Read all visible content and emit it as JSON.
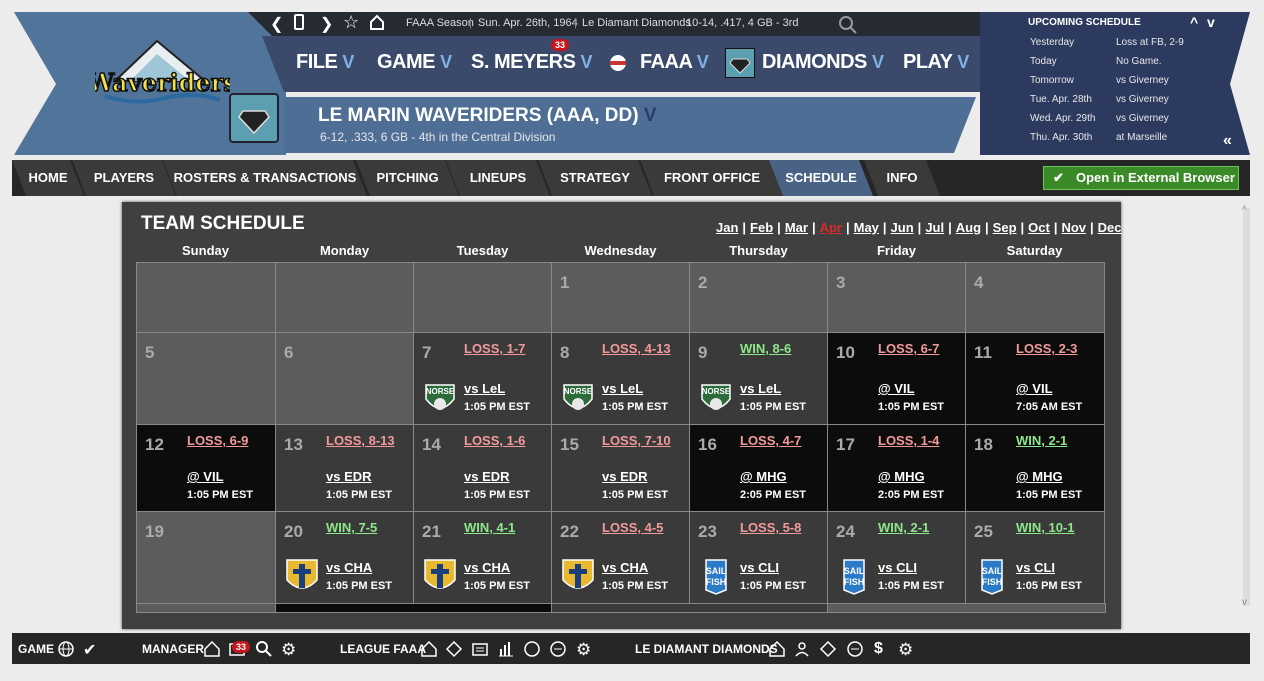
{
  "topbar": {
    "season": "FAAA Season",
    "date": "Sun. Apr. 26th, 1964",
    "team": "Le Diamant Diamonds",
    "record": "10-14, .417, 4 GB - 3rd"
  },
  "nav": {
    "items": [
      {
        "label": "FILE"
      },
      {
        "label": "GAME"
      },
      {
        "label": "S. MEYERS",
        "badge": "33"
      },
      {
        "label": "FAAA"
      },
      {
        "label": "DIAMONDS"
      },
      {
        "label": "PLAY"
      }
    ]
  },
  "team": {
    "name": "LE MARIN WAVERIDERS (AAA, DD)",
    "sub": "6-12, .333, 6 GB - 4th in the  Central Division",
    "logo_text": "Waveriders"
  },
  "upcoming": {
    "title": "UPCOMING SCHEDULE",
    "rows": [
      {
        "day": "Yesterday",
        "info": "Loss at FB, 2-9"
      },
      {
        "day": "Today",
        "info": "No Game."
      },
      {
        "day": "Tomorrow",
        "info": "vs Giverney"
      },
      {
        "day": "Tue. Apr. 28th",
        "info": "vs Giverney"
      },
      {
        "day": "Wed. Apr. 29th",
        "info": "vs Giverney"
      },
      {
        "day": "Thu. Apr. 30th",
        "info": "at Marseille"
      }
    ]
  },
  "tabs": [
    "HOME",
    "PLAYERS",
    "ROSTERS & TRANSACTIONS",
    "PITCHING",
    "LINEUPS",
    "STRATEGY",
    "FRONT OFFICE",
    "SCHEDULE",
    "INFO"
  ],
  "active_tab": "SCHEDULE",
  "external_button": "Open in External Browser",
  "schedule": {
    "title": "TEAM SCHEDULE",
    "months": [
      "Jan",
      "Feb",
      "Mar",
      "Apr",
      "May",
      "Jun",
      "Jul",
      "Aug",
      "Sep",
      "Oct",
      "Nov",
      "Dec"
    ],
    "current_month": "Apr",
    "days": [
      "Sunday",
      "Monday",
      "Tuesday",
      "Wednesday",
      "Thursday",
      "Friday",
      "Saturday"
    ],
    "weeks": [
      [
        null,
        null,
        null,
        {
          "d": "1"
        },
        {
          "d": "2"
        },
        {
          "d": "3"
        },
        {
          "d": "4"
        }
      ],
      [
        {
          "d": "5"
        },
        {
          "d": "6"
        },
        {
          "d": "7",
          "r": "LOSS, 1-7",
          "w": false,
          "o": "vs LeL",
          "t": "1:05 PM EST",
          "i": "norse"
        },
        {
          "d": "8",
          "r": "LOSS, 4-13",
          "w": false,
          "o": "vs LeL",
          "t": "1:05 PM EST",
          "i": "norse"
        },
        {
          "d": "9",
          "r": "WIN, 8-6",
          "w": true,
          "o": "vs LeL",
          "t": "1:05 PM EST",
          "i": "norse"
        },
        {
          "d": "10",
          "r": "LOSS, 6-7",
          "w": false,
          "o": "@ VIL",
          "t": "1:05 PM EST",
          "away": true
        },
        {
          "d": "11",
          "r": "LOSS, 2-3",
          "w": false,
          "o": "@ VIL",
          "t": "7:05 AM EST",
          "away": true
        }
      ],
      [
        {
          "d": "12",
          "r": "LOSS, 6-9",
          "w": false,
          "o": "@ VIL",
          "t": "1:05 PM EST",
          "away": true
        },
        {
          "d": "13",
          "r": "LOSS, 8-13",
          "w": false,
          "o": "vs EDR",
          "t": "1:05 PM EST"
        },
        {
          "d": "14",
          "r": "LOSS, 1-6",
          "w": false,
          "o": "vs EDR",
          "t": "1:05 PM EST"
        },
        {
          "d": "15",
          "r": "LOSS, 7-10",
          "w": false,
          "o": "vs EDR",
          "t": "1:05 PM EST"
        },
        {
          "d": "16",
          "r": "LOSS, 4-7",
          "w": false,
          "o": "@ MHG",
          "t": "2:05 PM EST",
          "away": true
        },
        {
          "d": "17",
          "r": "LOSS, 1-4",
          "w": false,
          "o": "@ MHG",
          "t": "2:05 PM EST",
          "away": true
        },
        {
          "d": "18",
          "r": "WIN, 2-1",
          "w": true,
          "o": "@ MHG",
          "t": "1:05 PM EST",
          "away": true
        }
      ],
      [
        {
          "d": "19"
        },
        {
          "d": "20",
          "r": "WIN, 7-5",
          "w": true,
          "o": "vs CHA",
          "t": "1:05 PM EST",
          "i": "cross"
        },
        {
          "d": "21",
          "r": "WIN, 4-1",
          "w": true,
          "o": "vs CHA",
          "t": "1:05 PM EST",
          "i": "cross"
        },
        {
          "d": "22",
          "r": "LOSS, 4-5",
          "w": false,
          "o": "vs CHA",
          "t": "1:05 PM EST",
          "i": "cross"
        },
        {
          "d": "23",
          "r": "LOSS, 5-8",
          "w": false,
          "o": "vs CLI",
          "t": "1:05 PM EST",
          "i": "sail"
        },
        {
          "d": "24",
          "r": "WIN, 2-1",
          "w": true,
          "o": "vs CLI",
          "t": "1:05 PM EST",
          "i": "sail"
        },
        {
          "d": "25",
          "r": "WIN, 10-1",
          "w": true,
          "o": "vs CLI",
          "t": "1:05 PM EST",
          "i": "sail"
        }
      ]
    ]
  },
  "bottom": {
    "game_label": "GAME",
    "manager_label": "MANAGER",
    "manager_badge": "33",
    "league_label": "LEAGUE FAAA",
    "team_label": "LE DIAMANT DIAMONDS"
  },
  "colors": {
    "win": "#8ee68a",
    "loss": "#f29a9a",
    "active_tab": "#4a6286",
    "button": "#3a8a28"
  }
}
